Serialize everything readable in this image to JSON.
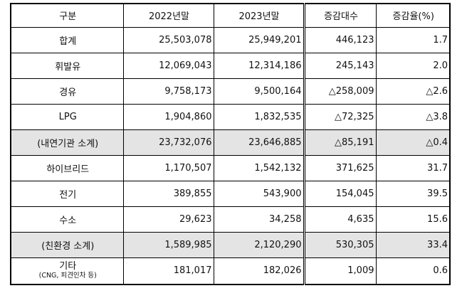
{
  "columns": [
    "구분",
    "2022년말",
    "2023년말",
    "증감대수",
    "증감율(%)"
  ],
  "rows": [
    {
      "label": "합계",
      "y2022": "25,503,078",
      "y2023": "25,949,201",
      "diff": "446,123",
      "rate": "1.7"
    },
    {
      "label": "휘발유",
      "y2022": "12,069,043",
      "y2023": "12,314,186",
      "diff": "245,143",
      "rate": "2.0"
    },
    {
      "label": "경유",
      "y2022": "9,758,173",
      "y2023": "9,500,164",
      "diff": "△258,009",
      "rate": "△2.6"
    },
    {
      "label": "LPG",
      "y2022": "1,904,860",
      "y2023": "1,832,535",
      "diff": "△72,325",
      "rate": "△3.8"
    },
    {
      "label": "(내연기관 소계)",
      "y2022": "23,732,076",
      "y2023": "23,646,885",
      "diff": "△85,191",
      "rate": "△0.4"
    },
    {
      "label": "하이브리드",
      "y2022": "1,170,507",
      "y2023": "1,542,132",
      "diff": "371,625",
      "rate": "31.7"
    },
    {
      "label": "전기",
      "y2022": "389,855",
      "y2023": "543,900",
      "diff": "154,045",
      "rate": "39.5"
    },
    {
      "label": "수소",
      "y2022": "29,623",
      "y2023": "34,258",
      "diff": "4,635",
      "rate": "15.6"
    },
    {
      "label": "(친환경 소계)",
      "y2022": "1,589,985",
      "y2023": "2,120,290",
      "diff": "530,305",
      "rate": "33.4"
    },
    {
      "label": "기타",
      "note": "(CNG, 피견인차 등)",
      "y2022": "181,017",
      "y2023": "182,026",
      "diff": "1,009",
      "rate": "0.6"
    }
  ]
}
